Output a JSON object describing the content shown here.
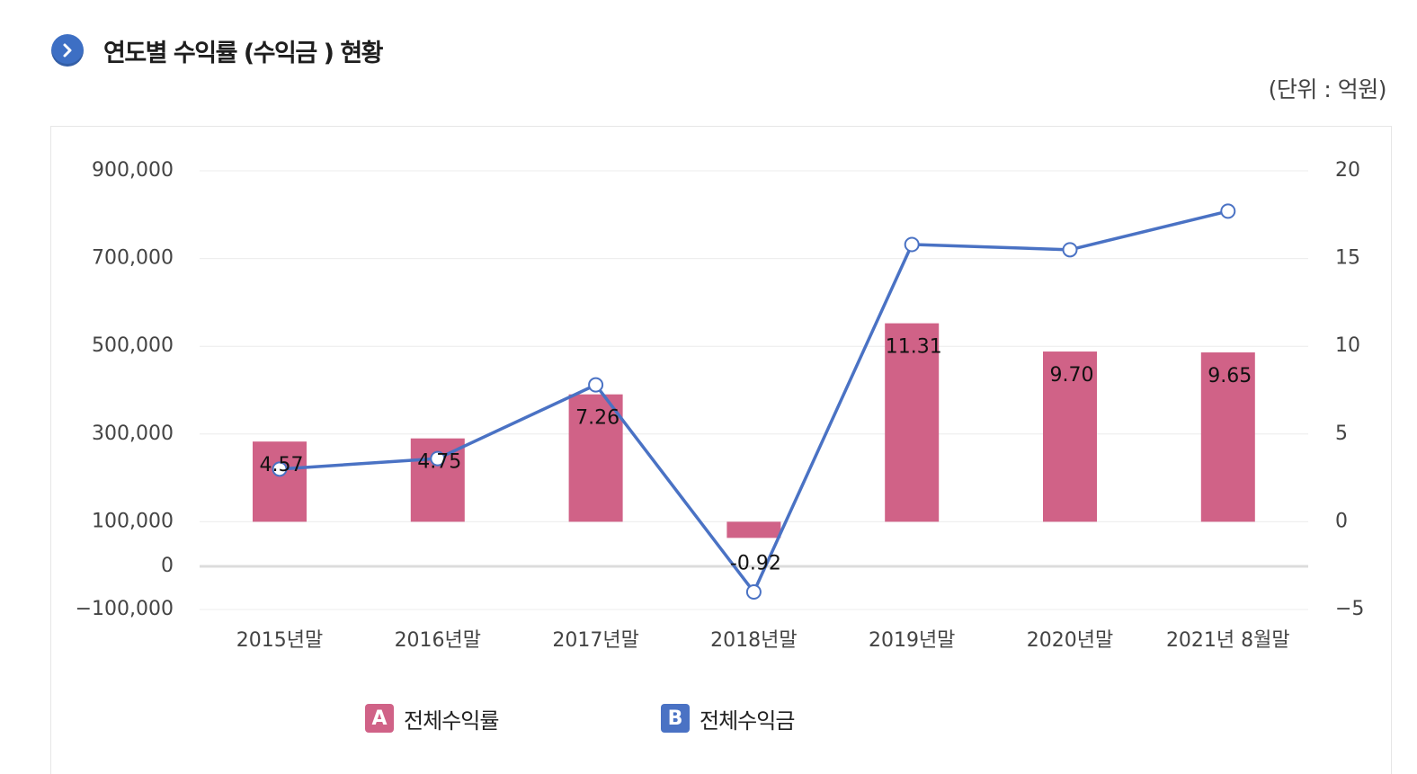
{
  "header": {
    "title": "연도별 수익률 (수익금 ) 현황",
    "unit": "(단위 : 억원)",
    "icon": "chevron-right-icon"
  },
  "colors": {
    "bar": "#d06287",
    "line": "#4a72c4",
    "icon": "#3d6fc4",
    "grid": "#ececec",
    "zero_line": "#dcdcdc",
    "axis_text": "#444444"
  },
  "legend": [
    {
      "badge": "A",
      "label": "전체수익률",
      "color": "#d06287"
    },
    {
      "badge": "B",
      "label": "전체수익금",
      "color": "#4a72c4"
    }
  ],
  "chart_data": {
    "type": "bar",
    "categories": [
      "2015년말",
      "2016년말",
      "2017년말",
      "2018년말",
      "2019년말",
      "2020년말",
      "2021년 8월말"
    ],
    "y_left": {
      "ticks": [
        900000,
        700000,
        500000,
        300000,
        100000,
        0,
        -100000
      ],
      "tick_labels": [
        "900,000",
        "700,000",
        "500,000",
        "300,000",
        "100,000",
        "0",
        "−100,000"
      ]
    },
    "y_right": {
      "ticks": [
        20,
        15,
        10,
        5,
        0,
        -5
      ],
      "tick_labels": [
        "20",
        "15",
        "10",
        "5",
        "0",
        "−5"
      ],
      "range": [
        -5,
        20
      ]
    },
    "grid": true,
    "series": [
      {
        "type": "bar",
        "axis": "right",
        "values": [
          4.57,
          4.75,
          7.26,
          -0.92,
          11.31,
          9.7,
          9.65
        ],
        "labels": [
          "4.57",
          "4.75",
          "7.26",
          "-0.92",
          "11.31",
          "9.70",
          "9.65"
        ]
      },
      {
        "type": "line",
        "axis": "right",
        "values": [
          3.0,
          3.6,
          7.8,
          -4.0,
          15.8,
          15.5,
          17.7
        ]
      }
    ]
  }
}
